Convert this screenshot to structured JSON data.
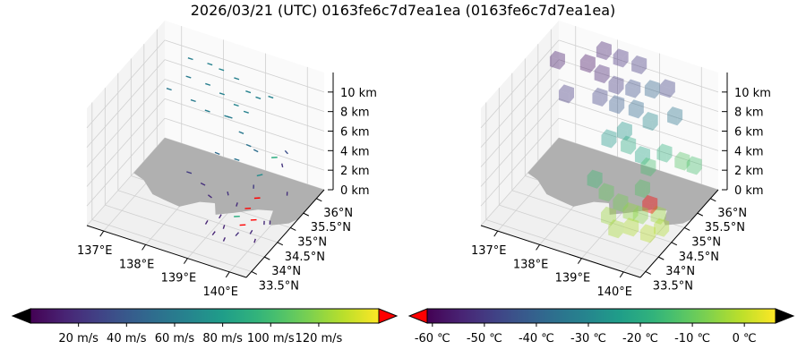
{
  "chart_data": {
    "title": "2026/03/21 (UTC) 0163fe6c7d7ea1ea (0163fe6c7d7ea1ea)",
    "type": "3d-scatter",
    "axes": {
      "lon_ticks": [
        137,
        138,
        139,
        140
      ],
      "lon_labels": [
        "137°E",
        "138°E",
        "139°E",
        "140°E"
      ],
      "lat_ticks": [
        33.5,
        34,
        34.5,
        35,
        35.5,
        36
      ],
      "lat_labels": [
        "33.5°N",
        "34°N",
        "34.5°N",
        "35°N",
        "35.5°N",
        "36°N"
      ],
      "z_ticks": [
        0,
        2,
        4,
        6,
        8,
        10
      ],
      "z_labels": [
        "0 km",
        "2 km",
        "4 km",
        "6 km",
        "8 km",
        "10 km"
      ],
      "lon_range": [
        136.6,
        140.4
      ],
      "lat_range": [
        33.3,
        36.3
      ],
      "z_range": [
        0,
        12
      ]
    },
    "land_outline": [
      [
        136.9,
        35.0
      ],
      [
        137.3,
        34.7
      ],
      [
        137.6,
        34.65
      ],
      [
        138.0,
        34.6
      ],
      [
        138.3,
        34.9
      ],
      [
        138.6,
        35.0
      ],
      [
        138.8,
        34.7
      ],
      [
        139.1,
        34.9
      ],
      [
        139.5,
        35.2
      ],
      [
        139.8,
        35.3
      ],
      [
        139.9,
        35.0
      ],
      [
        140.0,
        34.9
      ],
      [
        140.3,
        35.1
      ],
      [
        140.4,
        35.3
      ],
      [
        140.4,
        36.3
      ],
      [
        136.6,
        36.3
      ],
      [
        136.6,
        35.1
      ]
    ],
    "wind": {
      "colorbar": {
        "min": 0,
        "max": 145,
        "ticks": [
          20,
          40,
          60,
          80,
          100,
          120
        ],
        "labels": [
          "20 m/s",
          "40 m/s",
          "60 m/s",
          "80 m/s",
          "100 m/s",
          "120 m/s"
        ],
        "under_color": "#000000",
        "over_color": "#ff0000"
      },
      "points": [
        [
          137.4,
          35.9,
          10.5,
          90,
          62
        ],
        [
          137.8,
          36.0,
          10.2,
          90,
          64
        ],
        [
          138.2,
          35.8,
          10.8,
          90,
          66
        ],
        [
          138.5,
          35.9,
          10.0,
          90,
          63
        ],
        [
          138.9,
          35.7,
          9.8,
          90,
          65
        ],
        [
          137.6,
          35.5,
          10.1,
          90,
          60
        ],
        [
          138.0,
          35.6,
          9.6,
          90,
          62
        ],
        [
          138.4,
          35.5,
          9.5,
          90,
          64
        ],
        [
          138.8,
          35.4,
          9.2,
          90,
          66
        ],
        [
          139.2,
          35.6,
          9.9,
          90,
          64
        ],
        [
          137.9,
          35.2,
          9.0,
          90,
          60
        ],
        [
          138.3,
          35.1,
          8.8,
          90,
          62
        ],
        [
          138.7,
          35.2,
          8.5,
          90,
          63
        ],
        [
          139.1,
          35.3,
          9.2,
          90,
          64
        ],
        [
          139.5,
          35.6,
          10.4,
          90,
          65
        ],
        [
          137.2,
          35.4,
          8.6,
          90,
          58
        ],
        [
          138.4,
          35.8,
          6.2,
          90,
          60
        ],
        [
          138.8,
          35.6,
          5.8,
          95,
          58
        ],
        [
          139.1,
          35.4,
          5.5,
          95,
          55
        ],
        [
          139.4,
          35.2,
          6.0,
          100,
          52
        ],
        [
          138.6,
          35.0,
          5.2,
          95,
          50
        ],
        [
          139.0,
          35.1,
          4.8,
          90,
          56
        ],
        [
          139.7,
          35.4,
          5.0,
          60,
          90
        ],
        [
          139.6,
          35.0,
          4.2,
          45,
          70
        ],
        [
          139.9,
          35.6,
          5.4,
          120,
          35
        ],
        [
          137.8,
          35.2,
          1.5,
          90,
          25
        ],
        [
          138.2,
          35.1,
          1.2,
          100,
          20
        ],
        [
          138.5,
          34.9,
          1.0,
          110,
          18
        ],
        [
          138.9,
          35.0,
          1.6,
          140,
          22
        ],
        [
          139.2,
          34.9,
          1.2,
          160,
          18
        ],
        [
          139.4,
          35.2,
          2.4,
          150,
          25
        ],
        [
          139.6,
          34.9,
          2.2,
          60,
          148
        ],
        [
          139.5,
          34.7,
          1.6,
          60,
          148
        ],
        [
          139.7,
          34.6,
          1.0,
          60,
          148
        ],
        [
          139.3,
          34.6,
          0.8,
          60,
          90
        ],
        [
          139.5,
          34.5,
          0.5,
          60,
          148
        ],
        [
          139.0,
          34.6,
          0.6,
          170,
          15
        ],
        [
          139.2,
          34.4,
          0.4,
          160,
          15
        ],
        [
          139.6,
          34.3,
          0.5,
          180,
          20
        ],
        [
          139.8,
          34.5,
          0.4,
          170,
          18
        ],
        [
          139.9,
          34.8,
          0.6,
          150,
          18
        ],
        [
          138.8,
          34.4,
          0.3,
          170,
          14
        ],
        [
          139.1,
          34.2,
          0.2,
          175,
          15
        ],
        [
          139.4,
          34.1,
          0.3,
          165,
          16
        ],
        [
          140.0,
          34.3,
          0.4,
          160,
          14
        ],
        [
          140.1,
          34.7,
          1.2,
          150,
          18
        ],
        [
          140.2,
          35.2,
          2.8,
          150,
          20
        ],
        [
          139.7,
          35.8,
          3.2,
          140,
          22
        ]
      ]
    },
    "temperature": {
      "colorbar": {
        "min": -61,
        "max": 6,
        "ticks": [
          -60,
          -50,
          -40,
          -30,
          -20,
          -10,
          0
        ],
        "labels": [
          "-60 ℃",
          "-50 ℃",
          "-40 ℃",
          "-30 ℃",
          "-20 ℃",
          "-10 ℃",
          "0 ℃"
        ],
        "under_color": "#ff0000",
        "over_color": "#000000"
      },
      "cells": [
        [
          137.8,
          36.1,
          11.2,
          -55
        ],
        [
          138.2,
          36.1,
          11.0,
          -52
        ],
        [
          138.7,
          36.0,
          11.3,
          -50
        ],
        [
          137.0,
          35.6,
          10.6,
          -56
        ],
        [
          137.6,
          35.8,
          10.5,
          -58
        ],
        [
          138.0,
          35.7,
          10.3,
          -55
        ],
        [
          138.4,
          35.6,
          10.0,
          -50
        ],
        [
          138.8,
          35.6,
          10.2,
          -45
        ],
        [
          139.2,
          35.7,
          10.4,
          -40
        ],
        [
          139.5,
          35.8,
          10.6,
          -48
        ],
        [
          138.2,
          35.3,
          9.4,
          -48
        ],
        [
          138.6,
          35.3,
          9.2,
          -42
        ],
        [
          139.0,
          35.4,
          9.0,
          -38
        ],
        [
          137.4,
          35.3,
          8.6,
          -50
        ],
        [
          139.4,
          35.3,
          8.6,
          -30
        ],
        [
          139.8,
          35.6,
          8.8,
          -35
        ],
        [
          138.6,
          35.0,
          6.6,
          -25
        ],
        [
          139.0,
          35.1,
          6.2,
          -20
        ],
        [
          139.4,
          35.0,
          6.0,
          -22
        ],
        [
          139.8,
          35.2,
          6.2,
          -18
        ],
        [
          140.1,
          35.4,
          5.2,
          -12
        ],
        [
          139.6,
          34.9,
          5.4,
          -14
        ],
        [
          138.6,
          35.6,
          5.6,
          -26
        ],
        [
          140.2,
          35.7,
          4.0,
          -14
        ],
        [
          138.2,
          35.1,
          1.6,
          -15
        ],
        [
          138.6,
          34.9,
          1.4,
          -10
        ],
        [
          139.0,
          34.8,
          1.2,
          -8
        ],
        [
          139.3,
          34.7,
          1.0,
          -5
        ],
        [
          139.6,
          34.6,
          1.4,
          -6
        ],
        [
          139.9,
          34.8,
          1.2,
          -4
        ],
        [
          139.5,
          34.4,
          0.6,
          -2
        ],
        [
          139.9,
          34.4,
          0.5,
          -1
        ],
        [
          139.2,
          34.3,
          0.3,
          -3
        ],
        [
          140.1,
          34.6,
          0.8,
          -2
        ],
        [
          139.7,
          34.8,
          2.0,
          -66
        ],
        [
          139.4,
          35.0,
          2.6,
          -12
        ],
        [
          138.9,
          34.5,
          0.6,
          -4
        ]
      ]
    }
  }
}
